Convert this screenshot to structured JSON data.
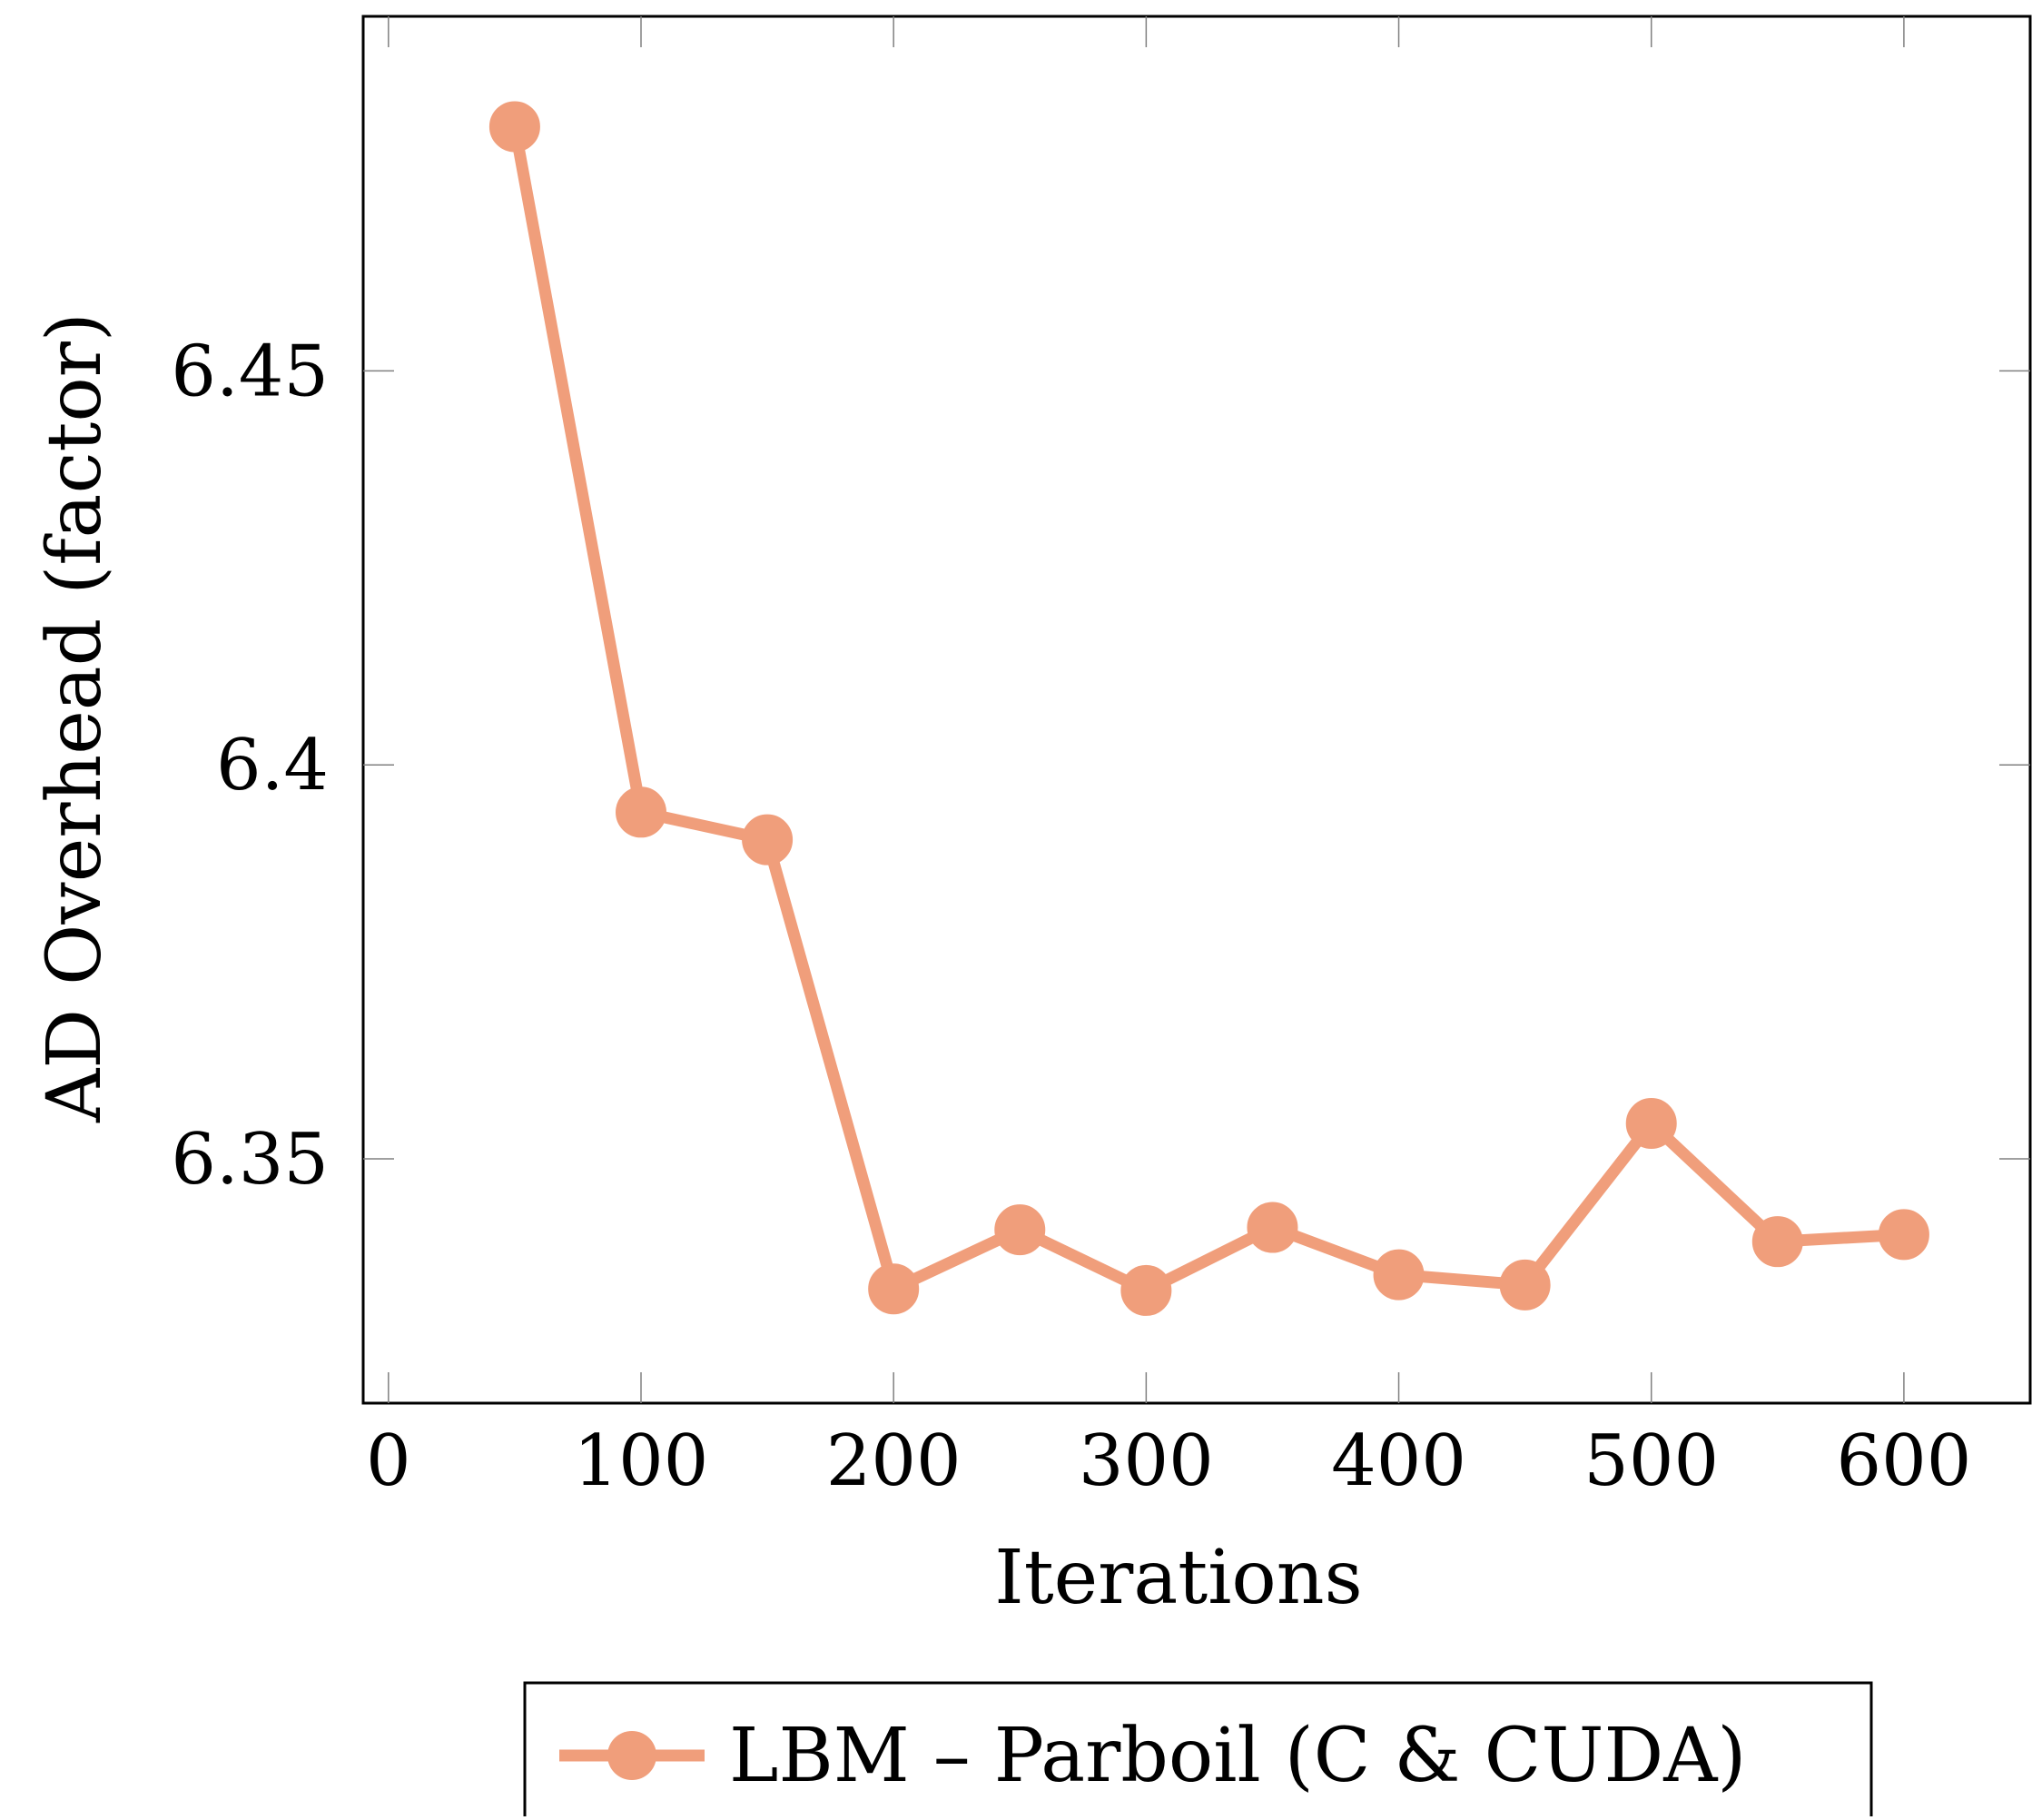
{
  "chart_data": {
    "type": "line",
    "xlabel": "Iterations",
    "ylabel": "AD Overhead (factor)",
    "xlim": [
      -10,
      650
    ],
    "ylim": [
      6.319,
      6.495
    ],
    "x_ticks": [
      0,
      100,
      200,
      300,
      400,
      500,
      600
    ],
    "x_tick_labels": [
      "0",
      "100",
      "200",
      "300",
      "400",
      "500",
      "600"
    ],
    "y_ticks": [
      6.35,
      6.4,
      6.45
    ],
    "y_tick_labels": [
      "6.35",
      "6.4",
      "6.45"
    ],
    "grid": false,
    "legend_position": "bottom-center",
    "series": [
      {
        "name": "LBM – Parboil (C & CUDA)",
        "color": "#f09e7b",
        "marker": "circle",
        "x": [
          50,
          100,
          150,
          200,
          250,
          300,
          350,
          400,
          450,
          500,
          550,
          600
        ],
        "y": [
          6.481,
          6.394,
          6.3905,
          6.3335,
          6.341,
          6.3333,
          6.3413,
          6.3353,
          6.334,
          6.3545,
          6.3395,
          6.3404
        ]
      }
    ]
  }
}
